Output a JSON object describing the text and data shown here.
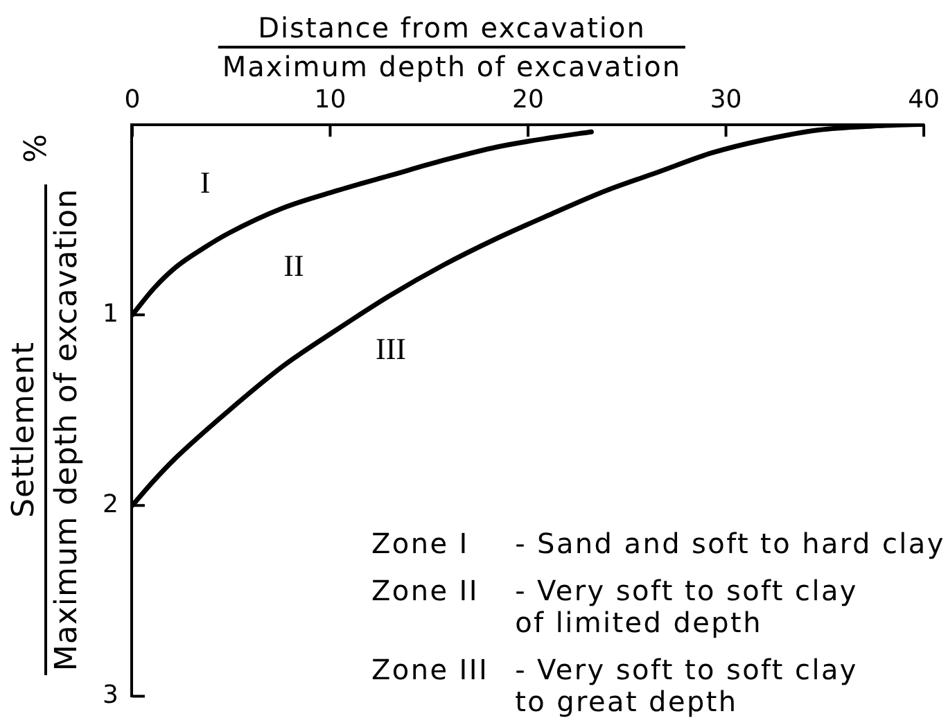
{
  "chart_data": {
    "type": "line",
    "xlabel": "Distance from excavation\nMaximum depth of excavation",
    "ylabel": "Settlement %\nMaximum depth of excavation",
    "xlim": [
      0,
      40
    ],
    "xticks": [
      0,
      10,
      20,
      30,
      40
    ],
    "ylim": [
      3,
      0
    ],
    "yticks": [
      1,
      2,
      3
    ],
    "series": [
      {
        "color": "#000000",
        "x": [
          0,
          1.1,
          2.2,
          3.6,
          4.9,
          7.6,
          10.3,
          13.0,
          15.7,
          18.4,
          21.2,
          23.2
        ],
        "values": [
          1,
          0.86,
          0.75,
          0.65,
          0.57,
          0.44,
          0.35,
          0.27,
          0.19,
          0.12,
          0.07,
          0.04
        ]
      },
      {
        "color": "#000000",
        "x": [
          0,
          1.0,
          2.2,
          4.9,
          7.6,
          10.3,
          13.0,
          15.7,
          18.4,
          21.2,
          23.9,
          26.6,
          29.3,
          32.0,
          34.7,
          37.4,
          40
        ],
        "values": [
          2,
          1.88,
          1.75,
          1.5,
          1.27,
          1.08,
          0.9,
          0.74,
          0.6,
          0.47,
          0.35,
          0.25,
          0.15,
          0.08,
          0.03,
          0.01,
          0
        ]
      }
    ],
    "annotations": [
      "I",
      "II",
      "III",
      "Zone I - Sand and soft to hard clay",
      "Zone II - Very soft to soft clay\nof limited depth",
      "Zone III - Very soft to soft clay\nto great depth"
    ]
  }
}
